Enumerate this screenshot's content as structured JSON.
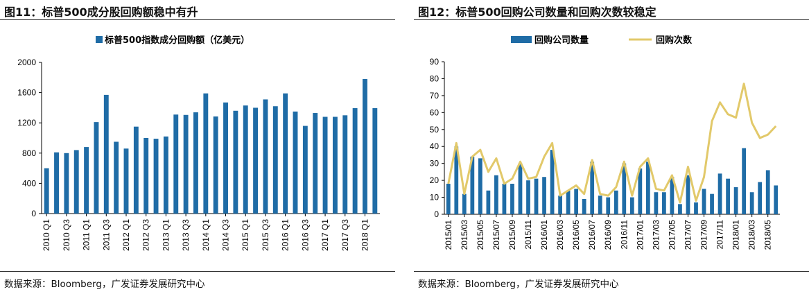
{
  "left": {
    "title": "图11：标普500成分股回购额稳中有升",
    "source": "数据来源：Bloomberg，广发证券发展研究中心",
    "chart_data": {
      "type": "bar",
      "title": "",
      "legend": [
        "标普500指数成分回购额（亿美元）"
      ],
      "categories": [
        "2010 Q1",
        "2010 Q2",
        "2010 Q3",
        "2010 Q4",
        "2011 Q1",
        "2011 Q2",
        "2011 Q3",
        "2011 Q4",
        "2012 Q1",
        "2012 Q2",
        "2012 Q3",
        "2012 Q4",
        "2013 Q1",
        "2013 Q2",
        "2013 Q3",
        "2013 Q4",
        "2014 Q1",
        "2014 Q2",
        "2014 Q3",
        "2014 Q4",
        "2015 Q1",
        "2015 Q2",
        "2015 Q3",
        "2015 Q4",
        "2016 Q1",
        "2016 Q2",
        "2016 Q3",
        "2016 Q4",
        "2017 Q1",
        "2017 Q2",
        "2017 Q3",
        "2017 Q4",
        "2018 Q1",
        "2018 Q2"
      ],
      "tick_labels": [
        "2010 Q1",
        "2010 Q3",
        "2011 Q1",
        "2011 Q3",
        "2012 Q1",
        "2012 Q3",
        "2013 Q1",
        "2013 Q3",
        "2014 Q1",
        "2014 Q3",
        "2015 Q1",
        "2015 Q3",
        "2016 Q1",
        "2016 Q3",
        "2017 Q1",
        "2017 Q3",
        "2018 Q1"
      ],
      "values": [
        600,
        810,
        800,
        840,
        880,
        1210,
        1570,
        950,
        860,
        1150,
        1000,
        990,
        1020,
        1310,
        1305,
        1340,
        1590,
        1285,
        1470,
        1360,
        1430,
        1400,
        1510,
        1420,
        1590,
        1350,
        1160,
        1330,
        1280,
        1280,
        1300,
        1395,
        1780,
        1395
      ],
      "ylim": [
        0,
        2000
      ],
      "yticks": [
        0,
        400,
        800,
        1200,
        1600,
        2000
      ],
      "colors": {
        "bar": "#1F6CA6"
      }
    }
  },
  "right": {
    "title": "图12：标普500回购公司数量和回购次数较稳定",
    "source": "数据来源：Bloomberg，广发证券发展研究中心",
    "chart_data": {
      "type": "bar+line",
      "title": "",
      "categories": [
        "2015/01",
        "2015/02",
        "2015/03",
        "2015/04",
        "2015/05",
        "2015/06",
        "2015/07",
        "2015/08",
        "2015/09",
        "2015/10",
        "2015/11",
        "2015/12",
        "2016/01",
        "2016/02",
        "2016/03",
        "2016/04",
        "2016/05",
        "2016/06",
        "2016/07",
        "2016/08",
        "2016/09",
        "2016/10",
        "2016/11",
        "2016/12",
        "2017/01",
        "2017/02",
        "2017/03",
        "2017/04",
        "2017/05",
        "2017/06",
        "2017/07",
        "2017/08",
        "2017/09",
        "2017/10",
        "2017/11",
        "2017/12",
        "2018/01",
        "2018/02",
        "2018/03",
        "2018/04",
        "2018/05",
        "2018/06"
      ],
      "tick_labels": [
        "2015/01",
        "2015/03",
        "2015/05",
        "2015/07",
        "2015/09",
        "2015/11",
        "2016/01",
        "2016/03",
        "2016/05",
        "2016/07",
        "2016/09",
        "2016/11",
        "2017/01",
        "2017/03",
        "2017/05",
        "2017/07",
        "2017/09",
        "2017/11",
        "2018/01",
        "2018/03",
        "2018/05"
      ],
      "series": [
        {
          "name": "回购公司数量",
          "kind": "bar",
          "color": "#1F6CA6",
          "values": [
            18,
            40,
            12,
            34,
            33,
            14,
            23,
            18,
            18,
            30,
            20,
            21,
            22,
            38,
            11,
            14,
            15,
            9,
            31,
            11,
            10,
            14,
            30,
            10,
            27,
            31,
            13,
            13,
            22,
            6,
            23,
            7,
            15,
            12,
            24,
            21,
            16,
            39,
            13,
            19,
            26,
            17
          ]
        },
        {
          "name": "回购次数",
          "kind": "line",
          "color": "#E2C96A",
          "values": [
            18,
            42,
            12,
            34,
            38,
            25,
            33,
            18,
            21,
            31,
            21,
            22,
            34,
            42,
            11,
            14,
            17,
            12,
            32,
            12,
            11,
            16,
            31,
            11,
            28,
            33,
            15,
            14,
            23,
            7,
            28,
            8,
            22,
            55,
            66,
            59,
            57,
            77,
            54,
            45,
            47,
            52
          ]
        }
      ],
      "ylim": [
        0,
        90
      ],
      "yticks": [
        0,
        10,
        20,
        30,
        40,
        50,
        60,
        70,
        80,
        90
      ]
    }
  }
}
